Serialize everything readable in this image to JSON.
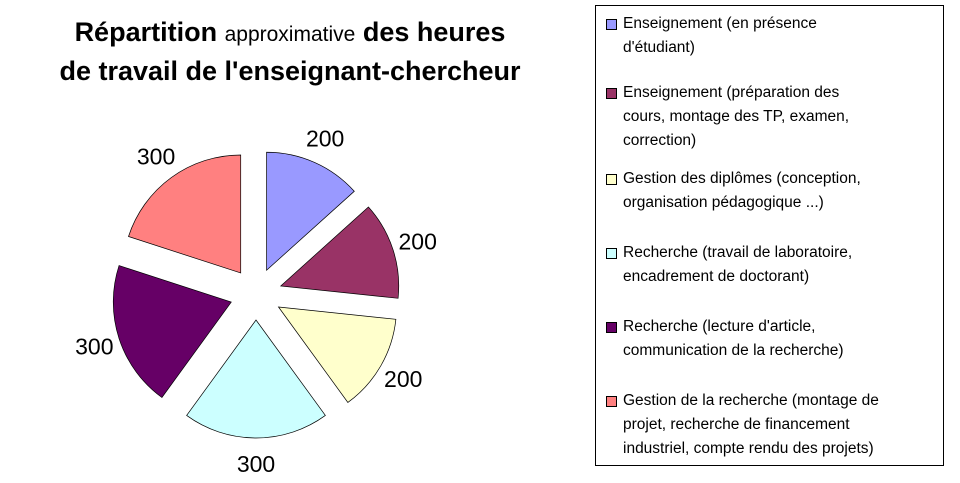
{
  "title": {
    "part1": "Répartition",
    "part2": "approximative",
    "part3": "des heures",
    "line2": "de travail de l'enseignant-chercheur"
  },
  "chart_data": {
    "type": "pie",
    "title": "Répartition approximative des heures de travail de l'enseignant-chercheur",
    "exploded": true,
    "legend_position": "right",
    "slices": [
      {
        "label": "Enseignement (en présence\nd'étudiant)",
        "value": 200,
        "color": "#9999ff"
      },
      {
        "label": "Enseignement (préparation des\ncours, montage des TP, examen,\ncorrection)",
        "value": 200,
        "color": "#993366"
      },
      {
        "label": "Gestion des diplômes (conception,\norganisation pédagogique ...)",
        "value": 200,
        "color": "#ffffcc"
      },
      {
        "label": "Recherche (travail de laboratoire,\nencadrement de doctorant)",
        "value": 300,
        "color": "#ccffff"
      },
      {
        "label": "Recherche (lecture d'article,\ncommunication de la recherche)",
        "value": 300,
        "color": "#660066"
      },
      {
        "label": "Gestion de la recherche (montage de\nprojet, recherche de financement\nindustriel, compte rendu des projets)",
        "value": 300,
        "color": "#ff8080"
      }
    ]
  }
}
